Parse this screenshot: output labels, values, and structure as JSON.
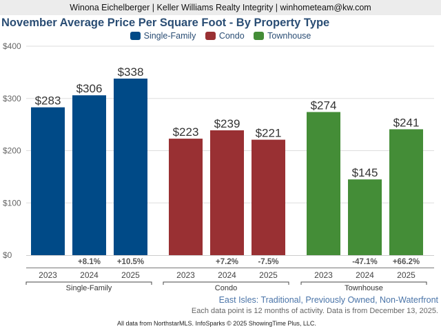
{
  "header": {
    "agent_line": "Winona Eichelberger | Keller Williams Realty Integrity | winhometeam@kw.com"
  },
  "footer": {
    "area_line": "East Isles: Traditional, Previously Owned, Non-Waterfront",
    "note_line": "Each data point is 12 months of activity. Data is from December 13, 2025.",
    "credit_line": "All data from NorthstarMLS. InfoSparks © 2025 ShowingTime Plus, LLC."
  },
  "colors": {
    "single_family": "#004a87",
    "condo": "#993033",
    "townhouse": "#448d37",
    "title": "#2a4d74"
  },
  "chart_data": {
    "type": "bar",
    "title": "November Average Price Per Square Foot - By Property Type",
    "xlabel": "",
    "ylabel": "",
    "ylim": [
      0,
      400
    ],
    "yticks": [
      0,
      100,
      200,
      300,
      400
    ],
    "ytick_labels": [
      "$0",
      "$100",
      "$200",
      "$300",
      "$400"
    ],
    "grid": true,
    "legend_position": "top-center",
    "legend": [
      "Single-Family",
      "Condo",
      "Townhouse"
    ],
    "groups": [
      {
        "name": "Single-Family",
        "color": "#004a87",
        "categories": [
          "2023",
          "2024",
          "2025"
        ],
        "values": [
          283,
          306,
          338
        ],
        "value_labels": [
          "$283",
          "$306",
          "$338"
        ],
        "pct_change": [
          "",
          "+8.1%",
          "+10.5%"
        ]
      },
      {
        "name": "Condo",
        "color": "#993033",
        "categories": [
          "2023",
          "2024",
          "2025"
        ],
        "values": [
          223,
          239,
          221
        ],
        "value_labels": [
          "$223",
          "$239",
          "$221"
        ],
        "pct_change": [
          "",
          "+7.2%",
          "-7.5%"
        ]
      },
      {
        "name": "Townhouse",
        "color": "#448d37",
        "categories": [
          "2023",
          "2024",
          "2025"
        ],
        "values": [
          274,
          145,
          241
        ],
        "value_labels": [
          "$274",
          "$145",
          "$241"
        ],
        "pct_change": [
          "",
          "-47.1%",
          "+66.2%"
        ]
      }
    ]
  }
}
